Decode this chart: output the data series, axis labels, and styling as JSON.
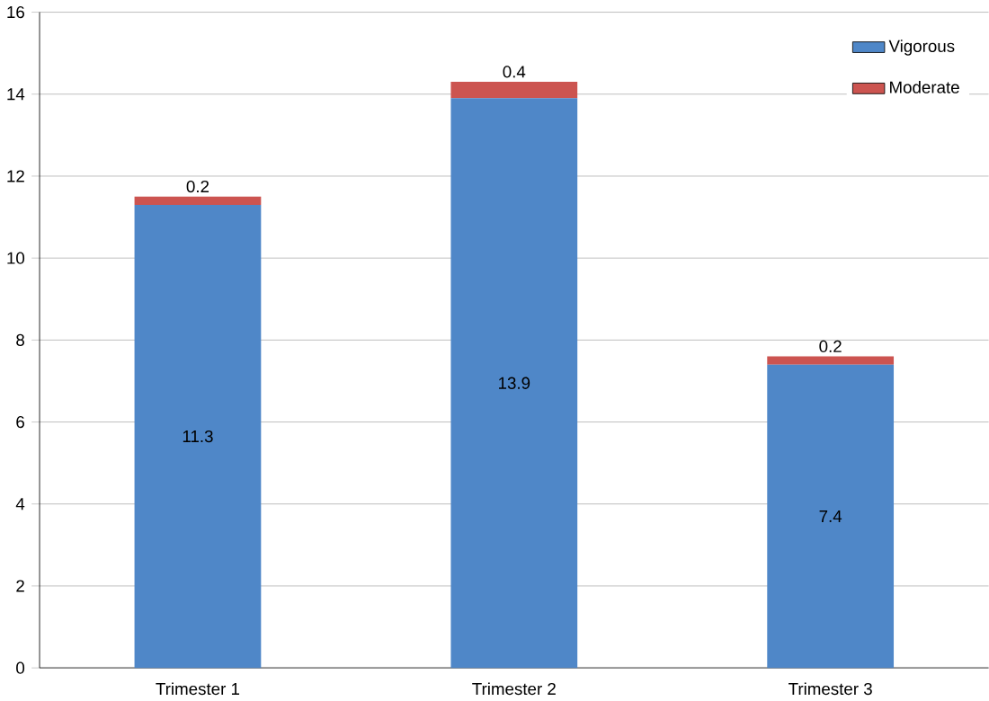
{
  "chart_data": {
    "type": "bar",
    "stacked": true,
    "categories": [
      "Trimester 1",
      "Trimester 2",
      "Trimester 3"
    ],
    "series": [
      {
        "name": "Vigorous",
        "color": "#4f87c8",
        "values": [
          11.3,
          13.9,
          7.4
        ]
      },
      {
        "name": "Moderate",
        "color": "#cc5450",
        "values": [
          0.2,
          0.4,
          0.2
        ]
      }
    ],
    "ylim": [
      0,
      16
    ],
    "yticks": [
      0,
      2,
      4,
      6,
      8,
      10,
      12,
      14,
      16
    ],
    "grid": "y",
    "legend": "top right",
    "data_labels": true
  }
}
